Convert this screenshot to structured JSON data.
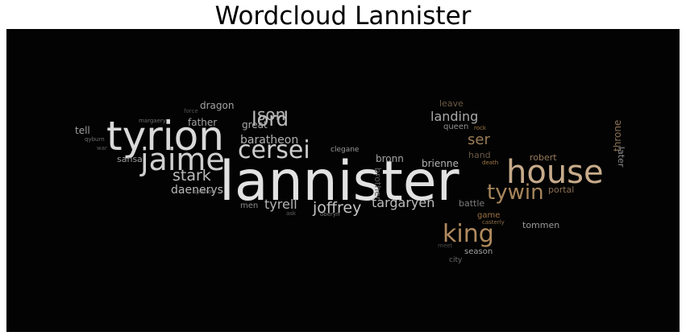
{
  "title": "Wordcloud Lannister",
  "words": [
    {
      "text": "lannister",
      "color": "#e2e2e2"
    },
    {
      "text": "tyrion",
      "color": "#d9d9d9"
    },
    {
      "text": "house",
      "color": "#c7ab8b"
    },
    {
      "text": "jaime",
      "color": "#cfcfcf"
    },
    {
      "text": "cersei",
      "color": "#cdcdcd"
    },
    {
      "text": "king",
      "color": "#b08a5e"
    },
    {
      "text": "tywin",
      "color": "#a8865c"
    },
    {
      "text": "lord",
      "color": "#bdbdbd"
    },
    {
      "text": "son",
      "color": "#b5b5b5"
    },
    {
      "text": "stark",
      "color": "#bcbcbc"
    },
    {
      "text": "joffrey",
      "color": "#c4c4c4"
    },
    {
      "text": "targaryen",
      "color": "#bebebe"
    },
    {
      "text": "tyrell",
      "color": "#b4b4b4"
    },
    {
      "text": "landing",
      "color": "#a9a9a9"
    },
    {
      "text": "ser",
      "color": "#9a7c57"
    },
    {
      "text": "baratheon",
      "color": "#b0b0b0"
    },
    {
      "text": "daenerys",
      "color": "#b8b8b8"
    },
    {
      "text": "great",
      "color": "#a8a8a8"
    },
    {
      "text": "father",
      "color": "#a5a5a5"
    },
    {
      "text": "dragon",
      "color": "#a3a3a3"
    },
    {
      "text": "tell",
      "color": "#9f9f9f"
    },
    {
      "text": "sansa",
      "color": "#9b9b9b"
    },
    {
      "text": "bronn",
      "color": "#a6a6a6"
    },
    {
      "text": "brienne",
      "color": "#b3b3b3"
    },
    {
      "text": "robert",
      "color": "#957a5c"
    },
    {
      "text": "throne",
      "color": "#8d7358"
    },
    {
      "text": "later",
      "color": "#8c8c8c"
    },
    {
      "text": "portal",
      "color": "#8a6f52"
    },
    {
      "text": "tommen",
      "color": "#9a9a9a"
    },
    {
      "text": "battle",
      "color": "#7d7d7d"
    },
    {
      "text": "game",
      "color": "#9c7240"
    },
    {
      "text": "season",
      "color": "#a0a0a0"
    },
    {
      "text": "city",
      "color": "#6c6c6c"
    },
    {
      "text": "queen",
      "color": "#8f8f8f"
    },
    {
      "text": "leave",
      "color": "#6b5a44"
    },
    {
      "text": "hand",
      "color": "#6a5846"
    },
    {
      "text": "brother",
      "color": "#5a5a5a"
    },
    {
      "text": "men",
      "color": "#8a8a8a"
    },
    {
      "text": "clegane",
      "color": "#9a9a9a"
    },
    {
      "text": "sparrow",
      "color": "#7a7a7a"
    },
    {
      "text": "margaery",
      "color": "#6e6e6e"
    },
    {
      "text": "force",
      "color": "#555555"
    },
    {
      "text": "qyburn",
      "color": "#6e6e6e"
    },
    {
      "text": "war",
      "color": "#5e5e5e"
    },
    {
      "text": "ask",
      "color": "#5e5e5e"
    },
    {
      "text": "oberyn",
      "color": "#7a7a7a"
    },
    {
      "text": "rock",
      "color": "#a07842"
    },
    {
      "text": "death",
      "color": "#a07842"
    },
    {
      "text": "casterly",
      "color": "#8a6d48"
    },
    {
      "text": "meet",
      "color": "#4a4a4a"
    }
  ]
}
